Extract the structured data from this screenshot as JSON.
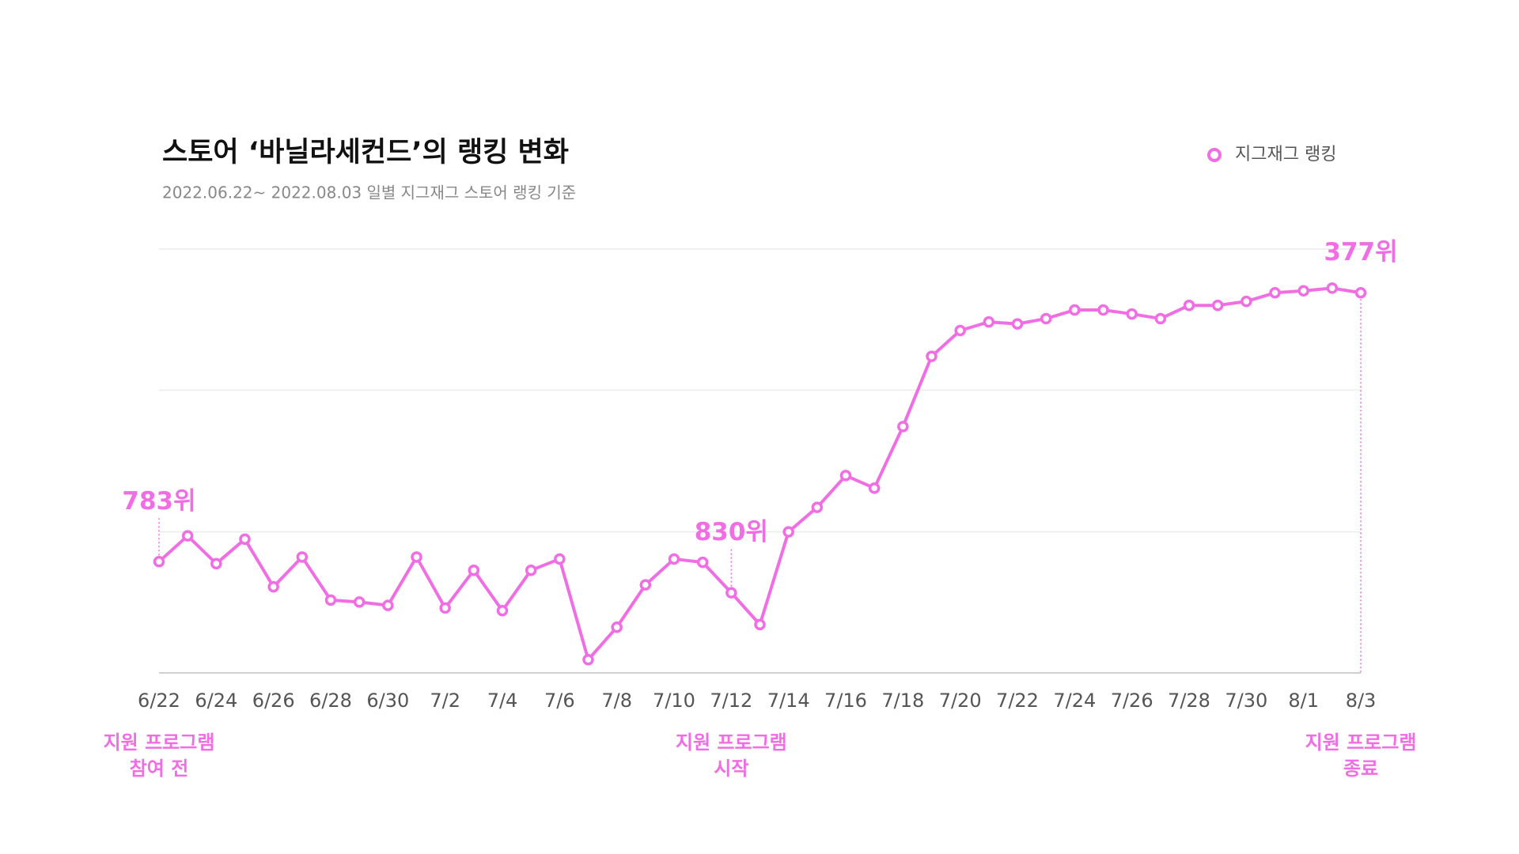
{
  "chart_data": {
    "type": "line",
    "title": "스토어 ‘바닐라세컨드’의 랭킹 변화",
    "subtitle": "2022.06.22~ 2022.08.03 일별 지그재그 스토어 랭킹 기준",
    "categories": [
      "6/22",
      null,
      "6/24",
      null,
      "6/26",
      null,
      "6/28",
      null,
      "6/30",
      null,
      "7/2",
      null,
      "7/4",
      null,
      "7/6",
      null,
      "7/8",
      null,
      "7/10",
      null,
      "7/12",
      null,
      "7/14",
      null,
      "7/16",
      null,
      "7/18",
      null,
      "7/20",
      null,
      "7/22",
      null,
      "7/24",
      null,
      "7/26",
      null,
      "7/28",
      null,
      "7/30",
      null,
      "8/1",
      null,
      "8/3"
    ],
    "series": [
      {
        "name": "지그재그 랭킹",
        "color": "#f06de3",
        "values": [
          783,
          744,
          786,
          749,
          821,
          776,
          841,
          844,
          849,
          776,
          853,
          796,
          857,
          796,
          779,
          931,
          882,
          818,
          779,
          784,
          830,
          878,
          738,
          701,
          653,
          672,
          579,
          473,
          434,
          421,
          424,
          416,
          403,
          403,
          409,
          416,
          396,
          396,
          390,
          377,
          374,
          370,
          377
        ],
        "value_labels": [
          "783위",
          null,
          null,
          null,
          null,
          null,
          null,
          null,
          null,
          null,
          null,
          null,
          null,
          null,
          null,
          null,
          null,
          null,
          null,
          null,
          "830위",
          null,
          null,
          null,
          null,
          null,
          null,
          null,
          null,
          null,
          null,
          null,
          null,
          null,
          null,
          null,
          null,
          null,
          null,
          null,
          null,
          null,
          "377위"
        ]
      }
    ],
    "annotations": [
      {
        "category": "6/22",
        "lines": [
          "지원 프로그램",
          "참여 전"
        ]
      },
      {
        "category": "7/12",
        "lines": [
          "지원 프로그램",
          "시작"
        ]
      },
      {
        "category": "8/3",
        "lines": [
          "지원 프로그램",
          "종료"
        ]
      }
    ],
    "ylim": [
      311,
      951
    ],
    "y_inverted": true,
    "yticks": [
      311,
      524,
      738,
      951
    ],
    "grid": true,
    "legend": "top-right"
  }
}
